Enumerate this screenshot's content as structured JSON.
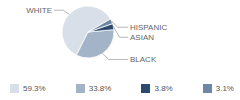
{
  "chart_data": {
    "type": "pie",
    "categories": [
      "WHITE",
      "BLACK",
      "ASIAN",
      "HISPANIC"
    ],
    "values": [
      59.3,
      33.8,
      3.8,
      3.1
    ],
    "value_labels": [
      "59.3%",
      "33.8%",
      "3.8%",
      "3.1%"
    ],
    "colors": [
      "#d9dfe8",
      "#a3b3c8",
      "#2b4a6e",
      "#6d87a6"
    ],
    "legend": "bottom"
  }
}
